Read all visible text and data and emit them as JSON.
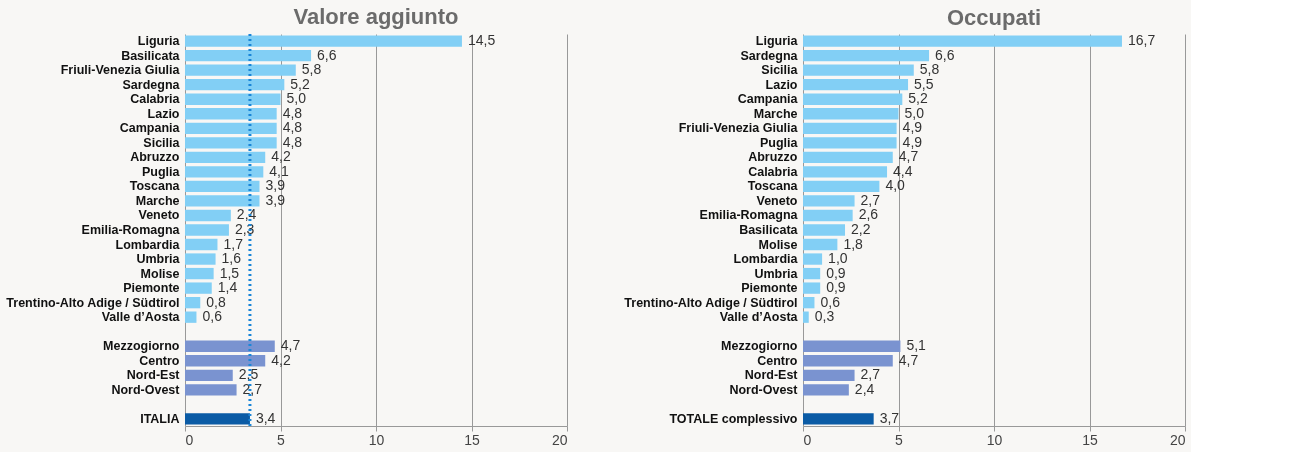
{
  "chart_data": [
    {
      "type": "bar",
      "orientation": "horizontal",
      "title": "Valore aggiunto",
      "categories": [
        "Liguria",
        "Basilicata",
        "Friuli-Venezia Giulia",
        "Sardegna",
        "Calabria",
        "Lazio",
        "Campania",
        "Sicilia",
        "Abruzzo",
        "Puglia",
        "Toscana",
        "Marche",
        "Veneto",
        "Emilia-Romagna",
        "Lombardia",
        "Umbria",
        "Molise",
        "Piemonte",
        "Trentino-Alto Adige / Südtirol",
        "Valle d’Aosta",
        null,
        "Mezzogiorno",
        "Centro",
        "Nord-Est",
        "Nord-Ovest",
        null,
        "ITALIA"
      ],
      "values": [
        14.5,
        6.6,
        5.8,
        5.2,
        5.0,
        4.8,
        4.8,
        4.8,
        4.2,
        4.1,
        3.9,
        3.9,
        2.4,
        2.3,
        1.7,
        1.6,
        1.5,
        1.4,
        0.8,
        0.6,
        null,
        4.7,
        4.2,
        2.5,
        2.7,
        null,
        3.4
      ],
      "value_labels": [
        "14,5",
        "6,6",
        "5,8",
        "5,2",
        "5,0",
        "4,8",
        "4,8",
        "4,8",
        "4,2",
        "4,1",
        "3,9",
        "3,9",
        "2,4",
        "2,3",
        "1,7",
        "1,6",
        "1,5",
        "1,4",
        "0,8",
        "0,6",
        null,
        "4,7",
        "4,2",
        "2,5",
        "2,7",
        null,
        "3,4"
      ],
      "colors": [
        "#82cff5",
        "#82cff5",
        "#82cff5",
        "#82cff5",
        "#82cff5",
        "#82cff5",
        "#82cff5",
        "#82cff5",
        "#82cff5",
        "#82cff5",
        "#82cff5",
        "#82cff5",
        "#82cff5",
        "#82cff5",
        "#82cff5",
        "#82cff5",
        "#82cff5",
        "#82cff5",
        "#82cff5",
        "#82cff5",
        null,
        "#7a93d0",
        "#7a93d0",
        "#7a93d0",
        "#7a93d0",
        null,
        "#0b5ba5"
      ],
      "xlim": [
        0,
        20
      ],
      "xticks": [
        0,
        5,
        10,
        15,
        20
      ],
      "grid": "x",
      "ref_lines": [
        {
          "axis": "x",
          "value": 3.4,
          "color": "#1a86d8",
          "line_style": "dotted"
        }
      ]
    },
    {
      "type": "bar",
      "orientation": "horizontal",
      "title": "Occupati",
      "categories": [
        "Liguria",
        "Sardegna",
        "Sicilia",
        "Lazio",
        "Campania",
        "Marche",
        "Friuli-Venezia Giulia",
        "Puglia",
        "Abruzzo",
        "Calabria",
        "Toscana",
        "Veneto",
        "Emilia-Romagna",
        "Basilicata",
        "Molise",
        "Lombardia",
        "Umbria",
        "Piemonte",
        "Trentino-Alto Adige / Südtirol",
        "Valle d’Aosta",
        null,
        "Mezzogiorno",
        "Centro",
        "Nord-Est",
        "Nord-Ovest",
        null,
        "TOTALE complessivo"
      ],
      "values": [
        16.7,
        6.6,
        5.8,
        5.5,
        5.2,
        5.0,
        4.9,
        4.9,
        4.7,
        4.4,
        4.0,
        2.7,
        2.6,
        2.2,
        1.8,
        1.0,
        0.9,
        0.9,
        0.6,
        0.3,
        null,
        5.1,
        4.7,
        2.7,
        2.4,
        null,
        3.7
      ],
      "value_labels": [
        "16,7",
        "6,6",
        "5,8",
        "5,5",
        "5,2",
        "5,0",
        "4,9",
        "4,9",
        "4,7",
        "4,4",
        "4,0",
        "2,7",
        "2,6",
        "2,2",
        "1,8",
        "1,0",
        "0,9",
        "0,9",
        "0,6",
        "0,3",
        null,
        "5,1",
        "4,7",
        "2,7",
        "2,4",
        null,
        "3,7"
      ],
      "colors": [
        "#82cff5",
        "#82cff5",
        "#82cff5",
        "#82cff5",
        "#82cff5",
        "#82cff5",
        "#82cff5",
        "#82cff5",
        "#82cff5",
        "#82cff5",
        "#82cff5",
        "#82cff5",
        "#82cff5",
        "#82cff5",
        "#82cff5",
        "#82cff5",
        "#82cff5",
        "#82cff5",
        "#82cff5",
        "#82cff5",
        null,
        "#7a93d0",
        "#7a93d0",
        "#7a93d0",
        "#7a93d0",
        null,
        "#0b5ba5"
      ],
      "xlim": [
        0,
        20
      ],
      "xticks": [
        0,
        5,
        10,
        15,
        20
      ],
      "grid": "x"
    }
  ]
}
